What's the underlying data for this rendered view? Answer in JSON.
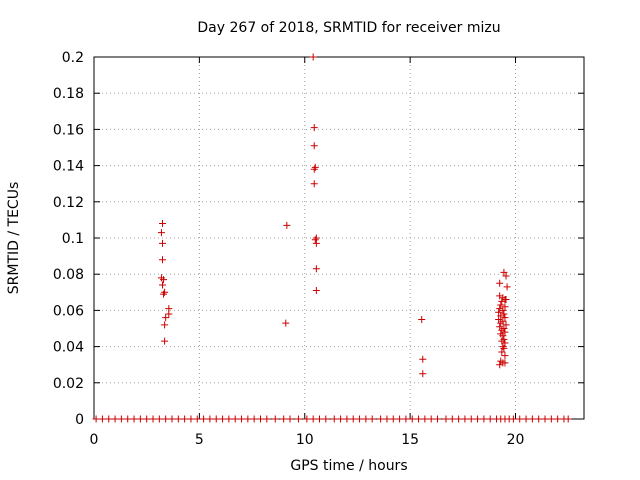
{
  "chart_data": {
    "type": "scatter",
    "title": "Day 267 of 2018, SRMTID for receiver mizu",
    "xlabel": "GPS time / hours",
    "ylabel": "SRMTID / TECUs",
    "xlim": [
      0,
      23.25
    ],
    "ylim": [
      0,
      0.2
    ],
    "xticks": [
      0,
      5,
      10,
      15,
      20
    ],
    "yticks": [
      0,
      0.02,
      0.04,
      0.06,
      0.08,
      0.1,
      0.12,
      0.14,
      0.16,
      0.18,
      0.2
    ],
    "xtick_labels": [
      "0",
      "5",
      "10",
      "15",
      "20"
    ],
    "ytick_labels": [
      "0",
      "0.02",
      "0.04",
      "0.06",
      "0.08",
      "0.1",
      "0.12",
      "0.14",
      "0.16",
      "0.18",
      "0.2"
    ],
    "grid": true,
    "marker": "+",
    "color": "#cc0000",
    "series": [
      {
        "name": "SRMTID",
        "points": [
          [
            3.25,
            0.108
          ],
          [
            3.2,
            0.103
          ],
          [
            3.25,
            0.097
          ],
          [
            3.25,
            0.088
          ],
          [
            3.2,
            0.078
          ],
          [
            3.3,
            0.077
          ],
          [
            3.25,
            0.074
          ],
          [
            3.35,
            0.07
          ],
          [
            3.3,
            0.069
          ],
          [
            3.55,
            0.061
          ],
          [
            3.55,
            0.058
          ],
          [
            3.4,
            0.056
          ],
          [
            3.35,
            0.052
          ],
          [
            3.35,
            0.043
          ],
          [
            9.15,
            0.107
          ],
          [
            9.1,
            0.053
          ],
          [
            10.4,
            0.2
          ],
          [
            10.45,
            0.161
          ],
          [
            10.45,
            0.151
          ],
          [
            10.5,
            0.139
          ],
          [
            10.45,
            0.138
          ],
          [
            10.45,
            0.13
          ],
          [
            10.55,
            0.1
          ],
          [
            10.5,
            0.099
          ],
          [
            10.55,
            0.097
          ],
          [
            10.55,
            0.083
          ],
          [
            10.55,
            0.071
          ],
          [
            15.55,
            0.055
          ],
          [
            15.6,
            0.033
          ],
          [
            15.6,
            0.025
          ],
          [
            19.25,
            0.075
          ],
          [
            19.45,
            0.081
          ],
          [
            19.55,
            0.079
          ],
          [
            19.6,
            0.073
          ],
          [
            19.25,
            0.068
          ],
          [
            19.4,
            0.067
          ],
          [
            19.5,
            0.066
          ],
          [
            19.35,
            0.065
          ],
          [
            19.55,
            0.066
          ],
          [
            19.3,
            0.063
          ],
          [
            19.5,
            0.062
          ],
          [
            19.25,
            0.061
          ],
          [
            19.4,
            0.06
          ],
          [
            19.2,
            0.059
          ],
          [
            19.45,
            0.058
          ],
          [
            19.3,
            0.057
          ],
          [
            19.5,
            0.056
          ],
          [
            19.2,
            0.055
          ],
          [
            19.4,
            0.054
          ],
          [
            19.3,
            0.053
          ],
          [
            19.55,
            0.052
          ],
          [
            19.25,
            0.051
          ],
          [
            19.45,
            0.05
          ],
          [
            19.35,
            0.049
          ],
          [
            19.5,
            0.048
          ],
          [
            19.3,
            0.047
          ],
          [
            19.4,
            0.046
          ],
          [
            19.45,
            0.044
          ],
          [
            19.35,
            0.043
          ],
          [
            19.5,
            0.042
          ],
          [
            19.4,
            0.04
          ],
          [
            19.45,
            0.039
          ],
          [
            19.35,
            0.037
          ],
          [
            19.5,
            0.035
          ],
          [
            19.3,
            0.032
          ],
          [
            19.4,
            0.031
          ],
          [
            19.25,
            0.03
          ],
          [
            19.5,
            0.031
          ]
        ],
        "zero_points_x": [
          0.1,
          0.4,
          0.7,
          1.0,
          1.3,
          1.6,
          1.9,
          2.2,
          2.5,
          2.8,
          3.1,
          3.4,
          3.7,
          4.0,
          4.3,
          4.6,
          4.9,
          5.2,
          5.5,
          5.8,
          6.1,
          6.4,
          6.7,
          7.0,
          7.3,
          7.6,
          7.9,
          8.2,
          8.6,
          9.0,
          9.3,
          9.7,
          10.1,
          10.4,
          10.7,
          11.0,
          11.4,
          11.7,
          12.0,
          12.3,
          12.6,
          12.9,
          13.2,
          13.6,
          13.9,
          14.2,
          14.5,
          14.8,
          15.1,
          15.4,
          15.7,
          16.0,
          16.3,
          16.7,
          17.0,
          17.3,
          17.6,
          17.9,
          18.2,
          18.5,
          18.8,
          19.1,
          19.3,
          19.5,
          19.7,
          19.9,
          20.2,
          20.5,
          20.8,
          21.1,
          21.4,
          21.7,
          22.0,
          22.3,
          22.5
        ]
      }
    ]
  }
}
